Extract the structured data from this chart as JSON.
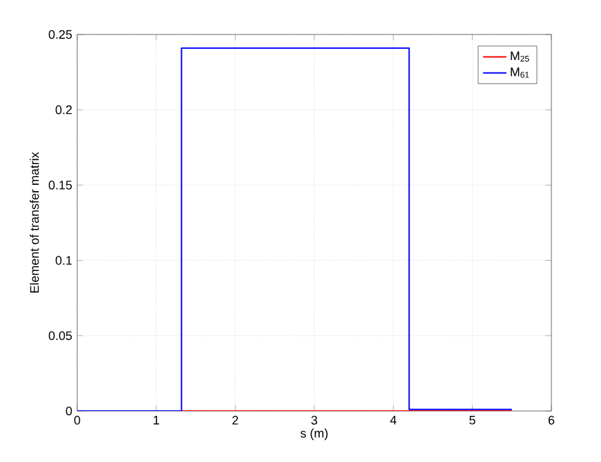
{
  "chart_data": {
    "type": "step",
    "xlabel": "s (m)",
    "ylabel": "Element of transfer matrix",
    "xlim": [
      0,
      6
    ],
    "ylim": [
      0,
      0.25
    ],
    "xticks": [
      0,
      1,
      2,
      3,
      4,
      5,
      6
    ],
    "yticks": [
      0,
      0.05,
      0.1,
      0.15,
      0.2,
      0.25
    ],
    "grid": true,
    "legend": "top right",
    "line_style": "solid",
    "series": [
      {
        "name": "M$_{25}$",
        "color": "#ff0000",
        "x": [
          0,
          1.32,
          4.2,
          5.5
        ],
        "values": [
          0,
          0,
          0,
          0
        ]
      },
      {
        "name": "M$_{61}$",
        "color": "#0000ff",
        "x": [
          0,
          1.32,
          4.2,
          5.5
        ],
        "values": [
          0,
          0.241,
          0.001,
          0.001
        ]
      }
    ]
  }
}
